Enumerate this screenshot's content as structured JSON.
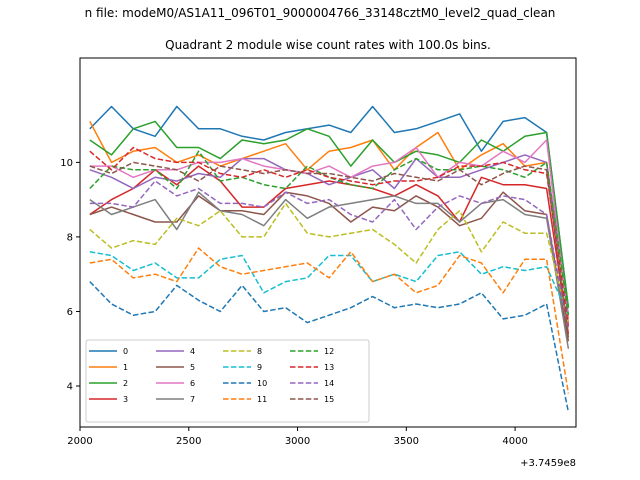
{
  "suptitle": "n file: modeM0/AS1A11_096T01_9000004766_33148cztM0_level2_quad_clean",
  "chart_data": {
    "type": "line",
    "title": "Quadrant 2 module wise count rates with 100.0s bins.",
    "xlabel": "",
    "ylabel": "",
    "x_offset_label": "+3.7459e8",
    "xlim": [
      2000,
      4280
    ],
    "ylim": [
      2.9,
      12.8
    ],
    "xticks": [
      2000,
      2500,
      3000,
      3500,
      4000
    ],
    "yticks": [
      4,
      6,
      8,
      10
    ],
    "grid": false,
    "legend_position": "lower-left",
    "x": [
      2045,
      2145,
      2245,
      2345,
      2445,
      2545,
      2645,
      2745,
      2845,
      2945,
      3045,
      3145,
      3245,
      3345,
      3445,
      3545,
      3645,
      3745,
      3845,
      3945,
      4045,
      4145,
      4245
    ],
    "series": [
      {
        "name": "0",
        "color": "#1f77b4",
        "dash": "solid",
        "values": [
          10.9,
          11.5,
          10.9,
          10.7,
          11.5,
          10.9,
          10.9,
          10.7,
          10.6,
          10.8,
          10.9,
          11.0,
          10.8,
          11.5,
          10.8,
          10.9,
          11.1,
          11.3,
          10.3,
          11.1,
          11.2,
          10.8,
          6.1
        ]
      },
      {
        "name": "1",
        "color": "#ff7f0e",
        "dash": "solid",
        "values": [
          11.1,
          10.0,
          10.3,
          10.4,
          10.0,
          10.2,
          9.9,
          10.1,
          10.3,
          10.5,
          9.8,
          10.3,
          10.4,
          10.6,
          9.8,
          10.4,
          10.8,
          9.8,
          10.2,
          10.5,
          9.9,
          10.0,
          5.8
        ]
      },
      {
        "name": "2",
        "color": "#2ca02c",
        "dash": "solid",
        "values": [
          10.6,
          10.2,
          10.9,
          11.1,
          10.4,
          10.4,
          10.1,
          10.6,
          10.5,
          10.6,
          10.9,
          10.7,
          9.9,
          10.6,
          10.0,
          10.3,
          10.2,
          10.0,
          10.6,
          10.3,
          10.7,
          10.8,
          6.1
        ]
      },
      {
        "name": "3",
        "color": "#d62728",
        "dash": "solid",
        "values": [
          8.6,
          9.0,
          9.3,
          9.8,
          9.4,
          9.9,
          9.5,
          8.8,
          8.8,
          9.3,
          9.4,
          9.5,
          9.4,
          9.3,
          9.1,
          9.4,
          9.1,
          8.4,
          9.6,
          9.4,
          9.4,
          9.3,
          5.4
        ]
      },
      {
        "name": "4",
        "color": "#9467bd",
        "dash": "solid",
        "values": [
          9.8,
          9.6,
          9.3,
          9.6,
          9.5,
          9.7,
          9.6,
          10.1,
          10.1,
          9.8,
          9.7,
          9.4,
          9.6,
          9.8,
          9.3,
          10.1,
          9.6,
          9.6,
          9.8,
          10.0,
          10.2,
          10.0,
          5.9
        ]
      },
      {
        "name": "5",
        "color": "#8c564b",
        "dash": "solid",
        "values": [
          8.6,
          8.8,
          8.6,
          8.4,
          8.4,
          9.1,
          8.7,
          8.7,
          8.6,
          9.2,
          9.1,
          8.9,
          8.4,
          8.8,
          8.7,
          9.1,
          8.8,
          8.3,
          8.5,
          9.2,
          8.7,
          8.6,
          5.2
        ]
      },
      {
        "name": "6",
        "color": "#e377c2",
        "dash": "solid",
        "values": [
          9.9,
          9.9,
          9.6,
          9.8,
          9.8,
          10.0,
          10.0,
          10.1,
          9.9,
          9.8,
          9.7,
          9.9,
          9.6,
          9.9,
          10.0,
          10.4,
          9.6,
          10.0,
          9.9,
          10.3,
          10.0,
          10.6,
          5.7
        ]
      },
      {
        "name": "7",
        "color": "#7f7f7f",
        "dash": "solid",
        "values": [
          9.0,
          8.6,
          8.8,
          9.0,
          8.2,
          9.2,
          8.7,
          8.6,
          8.3,
          9.0,
          8.5,
          8.8,
          8.9,
          9.0,
          9.1,
          8.9,
          8.9,
          8.4,
          8.9,
          9.0,
          8.6,
          8.5,
          5.0
        ]
      },
      {
        "name": "8",
        "color": "#bcbd22",
        "dash": "dashed",
        "values": [
          8.2,
          7.7,
          7.9,
          7.8,
          8.5,
          8.3,
          8.7,
          8.0,
          8.0,
          8.9,
          8.1,
          8.0,
          8.1,
          8.2,
          7.8,
          7.3,
          8.2,
          8.7,
          7.6,
          8.4,
          8.1,
          8.1,
          5.7
        ]
      },
      {
        "name": "9",
        "color": "#17becf",
        "dash": "dashed",
        "values": [
          7.6,
          7.5,
          7.1,
          7.3,
          6.9,
          6.9,
          7.4,
          7.5,
          6.5,
          6.8,
          6.9,
          7.5,
          7.5,
          6.8,
          7.0,
          6.8,
          7.5,
          7.6,
          7.0,
          7.2,
          7.1,
          7.2,
          5.9
        ]
      },
      {
        "name": "10",
        "color": "#1f77b4",
        "dash": "dashed",
        "values": [
          6.8,
          6.2,
          5.9,
          6.0,
          6.7,
          6.3,
          6.0,
          6.7,
          6.0,
          6.1,
          5.7,
          5.9,
          6.1,
          6.4,
          6.1,
          6.2,
          6.1,
          6.2,
          6.5,
          5.8,
          5.9,
          6.2,
          3.3
        ]
      },
      {
        "name": "11",
        "color": "#ff7f0e",
        "dash": "dashed",
        "values": [
          7.3,
          7.4,
          6.9,
          7.0,
          6.8,
          7.7,
          7.2,
          7.0,
          7.1,
          7.2,
          7.3,
          6.9,
          7.6,
          6.8,
          7.0,
          6.5,
          6.7,
          7.5,
          7.3,
          6.5,
          7.4,
          7.4,
          3.8
        ]
      },
      {
        "name": "12",
        "color": "#2ca02c",
        "dash": "dashed",
        "values": [
          9.3,
          9.9,
          9.8,
          9.8,
          9.3,
          10.3,
          9.5,
          9.6,
          9.4,
          9.3,
          9.9,
          9.6,
          9.4,
          9.3,
          9.8,
          10.1,
          9.8,
          9.8,
          9.9,
          9.8,
          9.6,
          10.0,
          5.9
        ]
      },
      {
        "name": "13",
        "color": "#d62728",
        "dash": "dashed",
        "values": [
          10.3,
          9.8,
          10.4,
          10.1,
          10.0,
          10.0,
          9.7,
          9.6,
          9.8,
          9.6,
          9.8,
          9.6,
          9.5,
          9.4,
          9.5,
          9.5,
          9.6,
          9.9,
          9.9,
          10.0,
          9.8,
          9.7,
          5.6
        ]
      },
      {
        "name": "14",
        "color": "#9467bd",
        "dash": "dashed",
        "values": [
          8.9,
          8.9,
          8.8,
          9.5,
          9.1,
          9.3,
          8.9,
          8.9,
          8.8,
          9.2,
          8.9,
          9.0,
          8.6,
          8.4,
          9.0,
          8.2,
          8.8,
          9.1,
          8.9,
          9.1,
          9.0,
          8.6,
          5.5
        ]
      },
      {
        "name": "15",
        "color": "#8c564b",
        "dash": "dashed",
        "values": [
          9.9,
          9.7,
          10.0,
          9.9,
          9.8,
          9.5,
          9.9,
          9.8,
          9.7,
          9.8,
          9.7,
          9.7,
          9.6,
          9.5,
          9.7,
          9.6,
          9.5,
          9.8,
          9.4,
          9.7,
          9.9,
          9.8,
          5.3
        ]
      }
    ]
  }
}
